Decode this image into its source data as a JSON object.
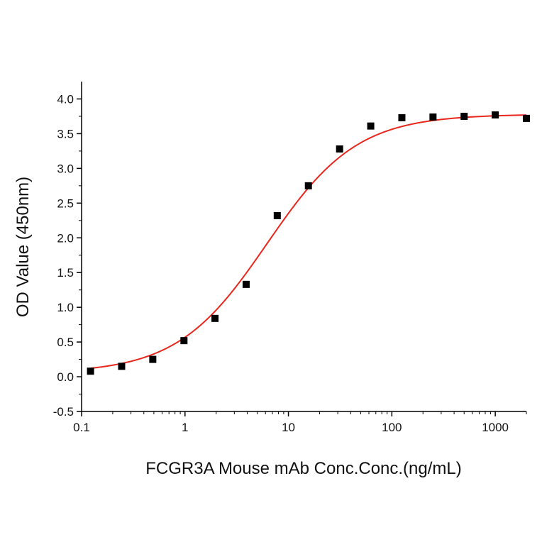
{
  "chart_data": {
    "type": "scatter",
    "title": "",
    "xlabel": "FCGR3A Mouse mAb Conc.Conc.(ng/mL)",
    "ylabel": "OD Value (450nm)",
    "xscale": "log",
    "xlim": [
      0.1,
      2000
    ],
    "ylim": [
      -0.5,
      4.25
    ],
    "x_ticks": [
      0.1,
      1,
      10,
      100,
      1000
    ],
    "x_tick_labels": [
      "0.1",
      "1",
      "10",
      "100",
      "1000"
    ],
    "y_ticks": [
      -0.5,
      0.0,
      0.5,
      1.0,
      1.5,
      2.0,
      2.5,
      3.0,
      3.5,
      4.0
    ],
    "y_tick_labels": [
      "-0.5",
      "0.0",
      "0.5",
      "1.0",
      "1.5",
      "2.0",
      "2.5",
      "3.0",
      "3.5",
      "4.0"
    ],
    "grid": false,
    "legend": "none",
    "series": [
      {
        "marker": "square",
        "color": "#000000",
        "x": [
          0.122,
          0.244,
          0.488,
          0.977,
          1.95,
          3.9,
          7.8,
          15.6,
          31.25,
          62.5,
          125,
          250,
          500,
          1000,
          2000
        ],
        "y": [
          0.08,
          0.15,
          0.25,
          0.52,
          0.84,
          1.33,
          2.32,
          2.75,
          3.28,
          3.61,
          3.73,
          3.74,
          3.75,
          3.77,
          3.72
        ]
      }
    ],
    "fit": {
      "type": "four-parameter logistic",
      "color": "#e8261c",
      "bottom": 0.05,
      "top": 3.78,
      "ec50": 6.2,
      "hill": 1.0,
      "x_range": [
        0.122,
        2000
      ]
    }
  }
}
